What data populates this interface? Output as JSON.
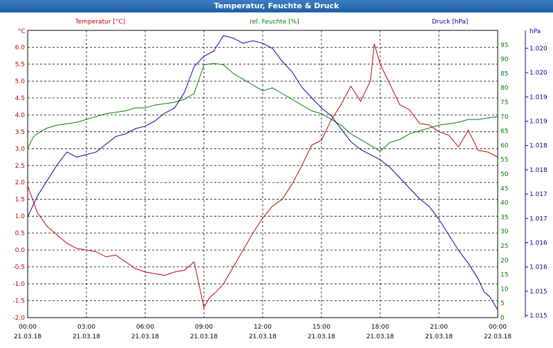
{
  "window": {
    "title": "Temperatur, Feuchte & Druck"
  },
  "colors": {
    "temp": "#c00000",
    "hum": "#007a00",
    "press": "#000099",
    "grid": "#000000"
  },
  "chart_data": {
    "type": "line",
    "title": "Temperatur, Feuchte & Druck",
    "x_ticks": [
      {
        "time": "00:00",
        "date": "21.03.18"
      },
      {
        "time": "03:00",
        "date": "21.03.18"
      },
      {
        "time": "06:00",
        "date": "21.03.18"
      },
      {
        "time": "09:00",
        "date": "21.03.18"
      },
      {
        "time": "12:00",
        "date": "21.03.18"
      },
      {
        "time": "15:00",
        "date": "21.03.18"
      },
      {
        "time": "18:00",
        "date": "21.03.18"
      },
      {
        "time": "21:00",
        "date": "21.03.18"
      },
      {
        "time": "00:00",
        "date": "22.03.18"
      }
    ],
    "x_range_hours": [
      0,
      24
    ],
    "grid": true,
    "axes": {
      "temp": {
        "label": "Temperatur [°C]",
        "unit": "°C",
        "range": [
          -2.0,
          6.5
        ],
        "ticks": [
          "-2.0",
          "-1.5",
          "-1.0",
          "-0.5",
          "0.0",
          "0.5",
          "1.0",
          "1.5",
          "2.0",
          "2.5",
          "3.0",
          "3.5",
          "4.0",
          "4.5",
          "5.0",
          "5.5",
          "6.0"
        ]
      },
      "hum": {
        "label": "rel. Feuchte [%]",
        "unit": "%",
        "range": [
          0,
          100
        ],
        "ticks": [
          "0",
          "5",
          "10",
          "15",
          "20",
          "25",
          "30",
          "35",
          "40",
          "45",
          "50",
          "55",
          "60",
          "65",
          "70",
          "75",
          "80",
          "85",
          "90",
          "95"
        ]
      },
      "press": {
        "label": "Druck [hPa]",
        "unit": "hPa",
        "range": [
          1014.95,
          1020.5
        ],
        "ticks": [
          "1.015",
          "1.015",
          "1.016",
          "1.016",
          "1.017",
          "1.017",
          "1.018",
          "1.018",
          "1.019",
          "1.019",
          "1.020",
          "1.020"
        ]
      }
    },
    "series": [
      {
        "name": "Temperatur [°C]",
        "axis": "temp",
        "x": [
          0,
          0.5,
          1,
          1.5,
          2,
          2.5,
          3,
          3.5,
          4,
          4.5,
          5,
          5.5,
          6,
          6.5,
          7,
          7.5,
          8,
          8.5,
          9,
          9.3,
          9.6,
          10,
          10.5,
          11,
          11.5,
          12,
          12.5,
          13,
          13.5,
          14,
          14.5,
          15,
          15.5,
          16,
          16.5,
          17,
          17.5,
          17.7,
          18,
          18.5,
          19,
          19.5,
          20,
          20.5,
          21,
          21.5,
          22,
          22.5,
          23,
          23.5,
          24
        ],
        "values": [
          1.9,
          1.1,
          0.7,
          0.45,
          0.2,
          0.05,
          0.0,
          -0.05,
          -0.2,
          -0.15,
          -0.35,
          -0.55,
          -0.65,
          -0.7,
          -0.75,
          -0.65,
          -0.6,
          -0.35,
          -1.7,
          -1.4,
          -1.25,
          -1.0,
          -0.5,
          0.0,
          0.5,
          0.95,
          1.3,
          1.5,
          1.95,
          2.5,
          3.1,
          3.25,
          3.85,
          4.3,
          4.85,
          4.4,
          5.0,
          6.1,
          5.5,
          4.9,
          4.3,
          4.15,
          3.75,
          3.7,
          3.5,
          3.4,
          3.05,
          3.55,
          2.95,
          2.9,
          2.75
        ]
      },
      {
        "name": "rel. Feuchte [%]",
        "axis": "hum",
        "x": [
          0,
          0.3,
          0.7,
          1,
          1.5,
          2,
          2.5,
          3,
          3.5,
          4,
          4.5,
          5,
          5.5,
          6,
          6.5,
          7,
          7.5,
          8,
          8.5,
          9,
          9.5,
          10,
          10.5,
          11,
          11.5,
          12,
          12.5,
          13,
          13.5,
          14,
          14.5,
          15,
          15.5,
          16,
          16.5,
          17,
          17.5,
          18,
          18.5,
          19,
          19.5,
          20,
          20.5,
          21,
          21.5,
          22,
          22.5,
          23,
          23.5,
          24
        ],
        "values": [
          59,
          63,
          65,
          66,
          67,
          67.5,
          68,
          69,
          70,
          71,
          71.5,
          72,
          73,
          73,
          74,
          74.5,
          75,
          76,
          78,
          88,
          88.5,
          88,
          85,
          83,
          81,
          79,
          80,
          78,
          76,
          74,
          72,
          71,
          69,
          67,
          64,
          62,
          60,
          58,
          61,
          62,
          64,
          65,
          66,
          67,
          67.5,
          68,
          69,
          69,
          69.5,
          70
        ]
      },
      {
        "name": "Druck [hPa]",
        "axis": "press",
        "x": [
          0,
          0.5,
          1,
          1.5,
          2,
          2.5,
          3,
          3.5,
          4,
          4.5,
          5,
          5.5,
          6,
          6.5,
          7,
          7.5,
          8,
          8.5,
          9,
          9.5,
          10,
          10.5,
          11,
          11.5,
          12,
          12.5,
          13,
          13.5,
          14,
          14.5,
          15,
          15.5,
          16,
          16.5,
          17,
          17.5,
          18,
          18.5,
          19,
          19.5,
          20,
          20.5,
          21,
          21.5,
          22,
          22.5,
          23,
          23.3,
          23.6,
          24
        ],
        "values": [
          1016.9,
          1017.3,
          1017.6,
          1017.9,
          1018.15,
          1018.05,
          1018.1,
          1018.15,
          1018.3,
          1018.45,
          1018.5,
          1018.6,
          1018.65,
          1018.75,
          1018.9,
          1019.0,
          1019.3,
          1019.8,
          1020.0,
          1020.1,
          1020.4,
          1020.35,
          1020.25,
          1020.3,
          1020.25,
          1020.15,
          1019.9,
          1019.7,
          1019.4,
          1019.2,
          1019.0,
          1018.85,
          1018.6,
          1018.35,
          1018.2,
          1018.1,
          1018.0,
          1017.85,
          1017.65,
          1017.45,
          1017.25,
          1017.1,
          1016.85,
          1016.55,
          1016.25,
          1016.0,
          1015.7,
          1015.45,
          1015.35,
          1015.1
        ]
      }
    ]
  }
}
